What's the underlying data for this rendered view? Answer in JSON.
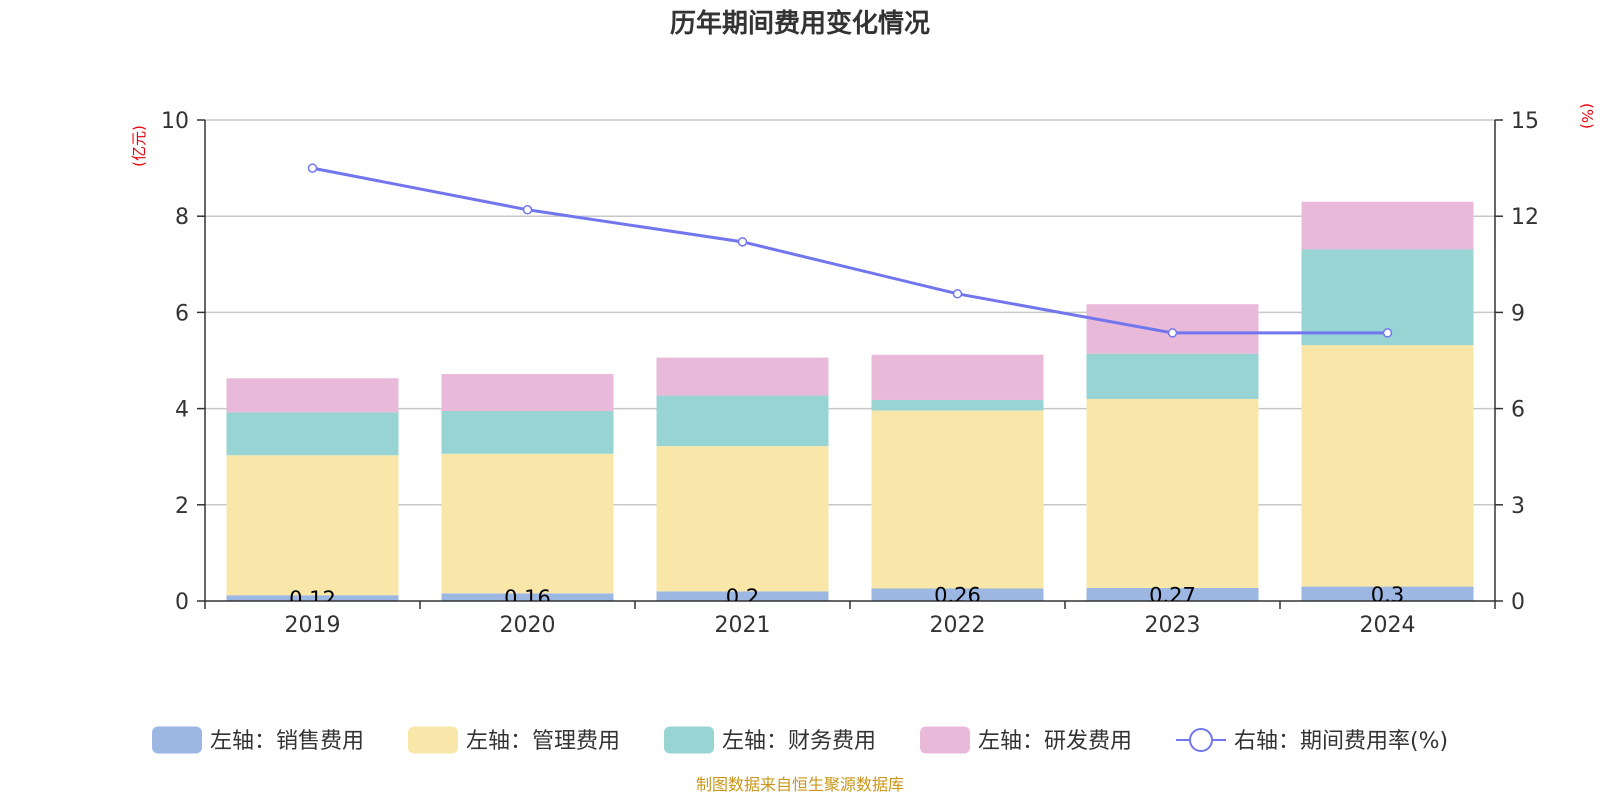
{
  "chart_data": {
    "type": "bar",
    "title": "历年期间费用变化情况",
    "categories": [
      "2019",
      "2020",
      "2021",
      "2022",
      "2023",
      "2024"
    ],
    "left_axis": {
      "unit": "(亿元)",
      "ylim": [
        0,
        10
      ],
      "ticks": [
        0,
        2,
        4,
        6,
        8,
        10
      ]
    },
    "right_axis": {
      "unit": "(%)",
      "ylim": [
        0,
        15
      ],
      "ticks": [
        0,
        3,
        6,
        9,
        12,
        15
      ]
    },
    "series": [
      {
        "name": "左轴：销售费用",
        "axis": "left",
        "stack": true,
        "color": "#9bb7e2",
        "values": [
          0.12,
          0.16,
          0.2,
          0.26,
          0.27,
          0.3
        ],
        "labels": [
          "0.12",
          "0.16",
          "0.2",
          "0.26",
          "0.27",
          "0.3"
        ]
      },
      {
        "name": "左轴：管理费用",
        "axis": "left",
        "stack": true,
        "color": "#f8e7a8",
        "values": [
          2.91,
          2.9,
          3.02,
          3.7,
          3.93,
          5.02
        ]
      },
      {
        "name": "左轴：财务费用",
        "axis": "left",
        "stack": true,
        "color": "#98d4d4",
        "values": [
          0.89,
          0.89,
          1.05,
          0.22,
          0.94,
          1.99
        ]
      },
      {
        "name": "左轴：研发费用",
        "axis": "left",
        "stack": true,
        "color": "#e8b9d8",
        "values": [
          0.71,
          0.77,
          0.79,
          0.94,
          1.03,
          0.99
        ]
      },
      {
        "name": "右轴：期间费用率(%)",
        "axis": "right",
        "type": "line",
        "color": "#7276ee",
        "values": [
          13.5,
          12.2,
          11.2,
          9.58,
          8.36,
          8.36
        ]
      }
    ],
    "legend_position": "bottom",
    "grid": true
  },
  "source_text": "制图数据来自恒生聚源数据库"
}
